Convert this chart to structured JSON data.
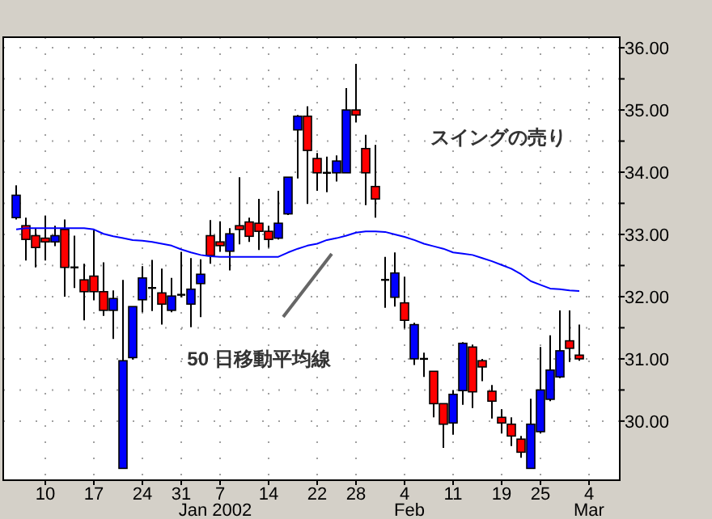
{
  "chart_data": {
    "type": "candlestick",
    "categories": [
      null,
      null,
      null,
      "10",
      null,
      null,
      null,
      null,
      "17",
      null,
      null,
      null,
      null,
      "24",
      null,
      null,
      null,
      "31",
      null,
      null,
      null,
      "7",
      null,
      null,
      null,
      null,
      "14",
      null,
      null,
      null,
      null,
      "22",
      null,
      null,
      null,
      "28",
      null,
      null,
      null,
      null,
      "4",
      null,
      null,
      null,
      null,
      "11",
      null,
      null,
      null,
      null,
      "19",
      null,
      null,
      null,
      "25",
      null,
      null,
      null,
      null,
      "4"
    ],
    "series": [
      {
        "type": "candlestick",
        "ohlc": [
          [
            33.27,
            33.79,
            33.24,
            33.63
          ],
          [
            33.14,
            33.27,
            32.58,
            32.92
          ],
          [
            32.98,
            33.1,
            32.47,
            32.79
          ],
          [
            32.94,
            33.3,
            32.58,
            32.88
          ],
          [
            32.88,
            33.14,
            32.81,
            32.98
          ],
          [
            33.08,
            33.24,
            32.0,
            32.47
          ],
          [
            32.47,
            32.98,
            32.14,
            32.47
          ],
          [
            32.27,
            32.53,
            31.62,
            32.08
          ],
          [
            32.33,
            33.07,
            31.94,
            32.08
          ],
          [
            32.08,
            32.55,
            31.69,
            31.78
          ],
          [
            31.78,
            32.1,
            31.32,
            31.97
          ],
          [
            29.24,
            32.27,
            29.24,
            30.97
          ],
          [
            31.02,
            31.84,
            30.99,
            31.84
          ],
          [
            31.95,
            32.49,
            31.75,
            32.3
          ],
          [
            32.14,
            32.59,
            31.77,
            32.14
          ],
          [
            32.06,
            32.45,
            31.55,
            31.88
          ],
          [
            31.78,
            32.3,
            31.75,
            32.01
          ],
          [
            32.03,
            32.72,
            31.99,
            32.03
          ],
          [
            31.88,
            32.62,
            31.51,
            32.12
          ],
          [
            32.21,
            32.6,
            31.67,
            32.36
          ],
          [
            32.98,
            33.23,
            32.53,
            32.66
          ],
          [
            32.88,
            33.21,
            32.72,
            32.82
          ],
          [
            32.73,
            33.1,
            32.42,
            33.01
          ],
          [
            33.14,
            33.92,
            32.84,
            33.08
          ],
          [
            33.2,
            33.27,
            32.88,
            32.97
          ],
          [
            33.18,
            33.57,
            32.75,
            33.05
          ],
          [
            33.05,
            33.14,
            32.79,
            32.92
          ],
          [
            32.94,
            33.7,
            32.92,
            33.18
          ],
          [
            33.33,
            33.92,
            33.31,
            33.92
          ],
          [
            34.68,
            34.92,
            33.9,
            34.9
          ],
          [
            34.9,
            35.06,
            33.49,
            34.35
          ],
          [
            34.22,
            34.31,
            33.7,
            33.99
          ],
          [
            33.99,
            34.25,
            33.68,
            33.99
          ],
          [
            33.99,
            34.27,
            33.85,
            34.18
          ],
          [
            33.99,
            35.35,
            33.99,
            35.0
          ],
          [
            35.0,
            35.74,
            34.8,
            34.92
          ],
          [
            34.38,
            34.6,
            33.47,
            33.99
          ],
          [
            33.77,
            34.44,
            33.27,
            33.57
          ],
          [
            32.27,
            32.64,
            31.82,
            32.27
          ],
          [
            31.99,
            32.71,
            31.84,
            32.38
          ],
          [
            31.9,
            32.32,
            31.49,
            31.62
          ],
          [
            31.0,
            31.58,
            30.9,
            31.55
          ],
          [
            31.0,
            31.1,
            30.71,
            31.0
          ],
          [
            30.8,
            30.8,
            30.06,
            30.28
          ],
          [
            30.28,
            30.28,
            29.57,
            29.95
          ],
          [
            29.97,
            30.5,
            29.78,
            30.43
          ],
          [
            30.49,
            31.27,
            30.26,
            31.25
          ],
          [
            31.19,
            31.23,
            30.21,
            30.47
          ],
          [
            30.97,
            31.0,
            30.64,
            30.87
          ],
          [
            30.48,
            30.58,
            30.04,
            30.32
          ],
          [
            30.06,
            30.19,
            29.8,
            29.97
          ],
          [
            29.95,
            30.06,
            29.6,
            29.76
          ],
          [
            29.71,
            29.76,
            29.41,
            29.5
          ],
          [
            29.24,
            30.36,
            29.24,
            29.95
          ],
          [
            29.83,
            31.19,
            29.8,
            30.5
          ],
          [
            30.35,
            31.38,
            30.32,
            30.82
          ],
          [
            30.71,
            31.78,
            30.69,
            31.13
          ],
          [
            31.29,
            31.78,
            30.95,
            31.17
          ],
          [
            31.06,
            31.55,
            30.97,
            31.0
          ],
          null
        ],
        "colors": [
          "#0000ff",
          "#ff0000",
          "#ff0000",
          "#ff0000",
          "#0000ff",
          "#ff0000",
          "#000000",
          "#ff0000",
          "#ff0000",
          "#ff0000",
          "#0000ff",
          "#0000ff",
          "#0000ff",
          "#0000ff",
          "#000000",
          "#ff0000",
          "#0000ff",
          "#000000",
          "#0000ff",
          "#0000ff",
          "#ff0000",
          "#ff0000",
          "#0000ff",
          "#ff0000",
          "#ff0000",
          "#ff0000",
          "#ff0000",
          "#0000ff",
          "#0000ff",
          "#0000ff",
          "#ff0000",
          "#ff0000",
          "#000000",
          "#0000ff",
          "#0000ff",
          "#ff0000",
          "#ff0000",
          "#ff0000",
          "#000000",
          "#0000ff",
          "#ff0000",
          "#0000ff",
          "#000000",
          "#ff0000",
          "#ff0000",
          "#0000ff",
          "#0000ff",
          "#ff0000",
          "#ff0000",
          "#ff0000",
          "#ff0000",
          "#ff0000",
          "#ff0000",
          "#0000ff",
          "#0000ff",
          "#0000ff",
          "#0000ff",
          "#ff0000",
          "#ff0000",
          null
        ]
      },
      {
        "type": "line",
        "color": "#0000ff",
        "values": [
          33.08,
          33.1,
          33.1,
          33.1,
          33.1,
          33.1,
          33.1,
          33.1,
          33.08,
          33.01,
          32.97,
          32.94,
          32.91,
          32.9,
          32.88,
          32.85,
          32.82,
          32.76,
          32.71,
          32.67,
          32.65,
          32.64,
          32.64,
          32.64,
          32.64,
          32.64,
          32.64,
          32.64,
          32.71,
          32.77,
          32.82,
          32.85,
          32.91,
          32.94,
          32.98,
          33.03,
          33.05,
          33.05,
          33.04,
          33.0,
          32.96,
          32.91,
          32.85,
          32.81,
          32.77,
          32.71,
          32.69,
          32.67,
          32.62,
          32.57,
          32.51,
          32.45,
          32.36,
          32.25,
          32.19,
          32.13,
          32.12,
          32.1,
          32.09,
          null
        ]
      }
    ],
    "ylim": [
      29.05,
      36.17
    ],
    "yticks": [
      {
        "value": 30,
        "label": "30.00"
      },
      {
        "value": 30.5,
        "label": null
      },
      {
        "value": 31,
        "label": "31.00"
      },
      {
        "value": 31.5,
        "label": null
      },
      {
        "value": 32,
        "label": "32.00"
      },
      {
        "value": 32.5,
        "label": null
      },
      {
        "value": 33,
        "label": "33.00"
      },
      {
        "value": 33.5,
        "label": null
      },
      {
        "value": 34,
        "label": "34.00"
      },
      {
        "value": 34.5,
        "label": null
      },
      {
        "value": 35,
        "label": "35.00"
      },
      {
        "value": 35.5,
        "label": null
      },
      {
        "value": 36,
        "label": "36.00"
      }
    ],
    "grid": true,
    "annotations": [
      "Jan 2002",
      "Feb",
      "Mar",
      "スイングの売り",
      "50 日移動平均線"
    ]
  }
}
